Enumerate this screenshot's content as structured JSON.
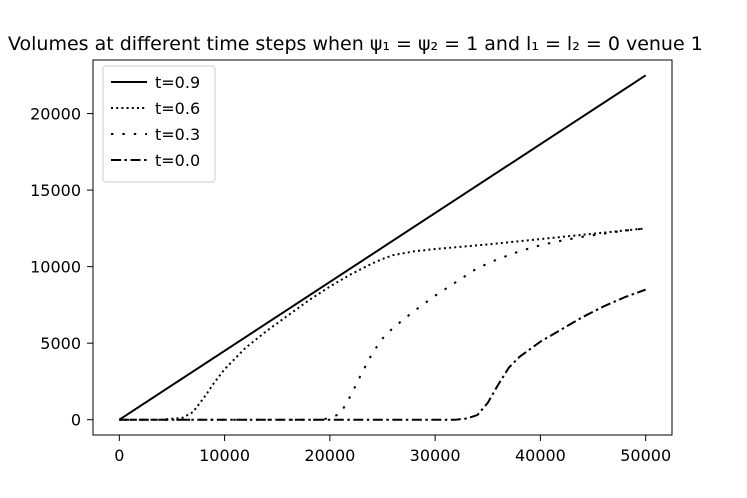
{
  "chart_data": {
    "type": "line",
    "title": "Volumes at different time steps when ψ₁ = ψ₂ = 1 and l₁ = l₂ = 0 venue 1",
    "xlabel": "",
    "ylabel": "",
    "xlim": [
      -2500,
      52500
    ],
    "ylim": [
      -1000,
      23500
    ],
    "xticks": [
      0,
      10000,
      20000,
      30000,
      40000,
      50000
    ],
    "yticks": [
      0,
      5000,
      10000,
      15000,
      20000
    ],
    "grid": false,
    "legend_position": "top-left",
    "series": [
      {
        "name": "t=0.9",
        "style": "solid",
        "x": [
          0,
          50000
        ],
        "y": [
          0,
          22500
        ]
      },
      {
        "name": "t=0.6",
        "style": "dotted",
        "x": [
          0,
          4000,
          6000,
          7000,
          8000,
          9000,
          10000,
          12000,
          14000,
          16000,
          18000,
          20000,
          22000,
          24000,
          25000,
          26000,
          28000,
          30000,
          35000,
          40000,
          45000,
          50000
        ],
        "y": [
          0,
          0,
          120,
          500,
          1400,
          2400,
          3300,
          4700,
          5800,
          6800,
          7800,
          8700,
          9500,
          10200,
          10500,
          10750,
          11000,
          11150,
          11450,
          11800,
          12150,
          12500
        ]
      },
      {
        "name": "t=0.3",
        "style": "loose-dotted",
        "x": [
          0,
          19000,
          20000,
          21000,
          22000,
          23000,
          24000,
          25000,
          26000,
          28000,
          30000,
          32000,
          34000,
          36000,
          38000,
          40000,
          42000,
          44000,
          46000,
          48000,
          50000
        ],
        "y": [
          0,
          0,
          100,
          400,
          1600,
          3000,
          4300,
          5300,
          6000,
          7100,
          8100,
          9000,
          9900,
          10500,
          11000,
          11400,
          11700,
          11950,
          12150,
          12350,
          12500
        ]
      },
      {
        "name": "t=0.0",
        "style": "dashdot",
        "x": [
          0,
          32000,
          33000,
          34000,
          35000,
          36000,
          37000,
          38000,
          39000,
          40000,
          42000,
          44000,
          46000,
          48000,
          50000
        ],
        "y": [
          0,
          0,
          80,
          300,
          1100,
          2300,
          3400,
          4100,
          4600,
          5100,
          5900,
          6700,
          7400,
          8000,
          8500
        ]
      }
    ]
  }
}
